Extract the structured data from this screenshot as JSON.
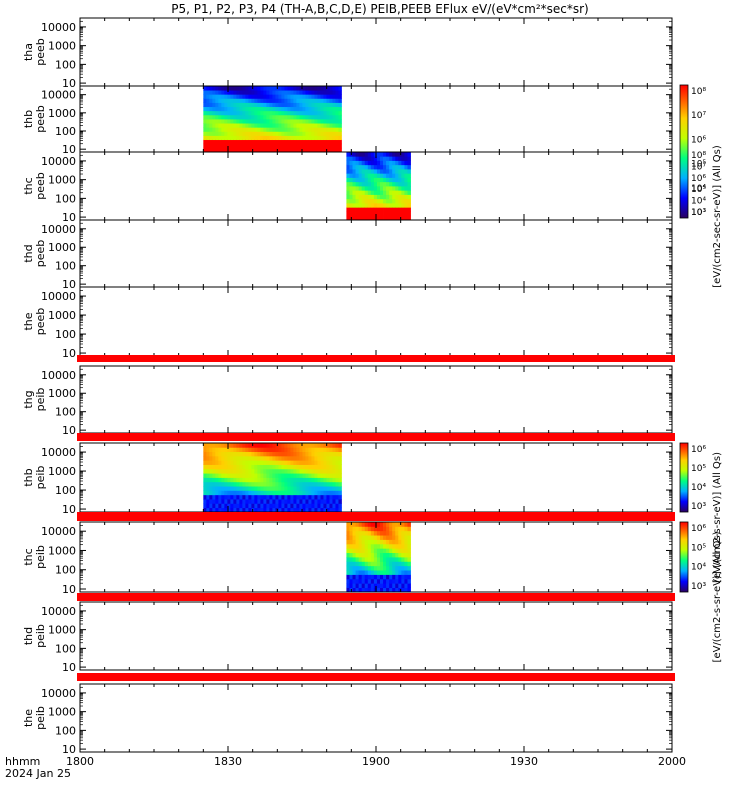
{
  "chart_data": {
    "type": "heatmap",
    "title": "P5, P1, P2, P3, P4 (TH-A,B,C,D,E) PEIB,PEEB EFlux eV/(eV*cm²*sec*sr)",
    "x_axis": {
      "label_line1": "hhmm",
      "label_line2": "2024 Jan 25",
      "range": [
        "18:00",
        "20:00"
      ],
      "ticks": [
        "1800",
        "1830",
        "1900",
        "1930",
        "2000"
      ]
    },
    "y_axis": {
      "scale": "log",
      "range": [
        7,
        30000
      ],
      "ticks": [
        "10",
        "100",
        "1000",
        "10000"
      ],
      "units": "eV"
    },
    "panels": [
      {
        "probe": "thb",
        "product": "peeb",
        "row": 1,
        "line1": "thb",
        "line2": "peeb",
        "data_intervals": [
          [
            "18:25",
            "18:53"
          ]
        ],
        "low_energy_band_below_ev": 35
      },
      {
        "probe": "thc",
        "product": "peeb",
        "row": 2,
        "line1": "thc",
        "line2": "peeb",
        "data_intervals": [
          [
            "18:54",
            "19:07"
          ]
        ],
        "low_energy_band_below_ev": 35
      },
      {
        "probe": "thd",
        "product": "peeb",
        "row": 3,
        "line1": "thd",
        "line2": "peeb",
        "data_intervals": []
      },
      {
        "probe": "the",
        "product": "peeb",
        "row": 4,
        "line1": "the",
        "line2": "peeb",
        "data_intervals": []
      },
      {
        "probe": "thg",
        "product": "peib",
        "row": 5,
        "line1": "thg",
        "line2": "peib",
        "data_intervals": []
      },
      {
        "probe": "thb",
        "product": "peib",
        "row": 6,
        "line1": "thb",
        "line2": "peib",
        "data_intervals": [
          [
            "18:25",
            "18:53"
          ]
        ]
      },
      {
        "probe": "thc",
        "product": "peib",
        "row": 7,
        "line1": "thc",
        "line2": "peib",
        "data_intervals": [
          [
            "18:54",
            "19:07"
          ]
        ]
      },
      {
        "probe": "thd",
        "product": "peib",
        "row": 8,
        "line1": "thd",
        "line2": "peib",
        "data_intervals": []
      },
      {
        "probe": "the",
        "product": "peib",
        "row": 9,
        "line1": "the",
        "line2": "peib",
        "data_intervals": []
      }
    ],
    "top_panel": {
      "probe": "tha",
      "product": "peeb",
      "line1": "tha",
      "line2": "peeb",
      "data_intervals": []
    },
    "colorbars": [
      {
        "unit_label": "[eV/(cm2-sec-sr-eV)] (All Qs)",
        "ticks": [
          "10⁸",
          "10⁷",
          "10⁶",
          "10⁵",
          "10⁴",
          "10³"
        ],
        "overlap_ticks": [
          "10⁸",
          "10⁷",
          "10⁶",
          "10⁵",
          "10⁴",
          "10³"
        ]
      },
      {
        "unit_label": "[eV/(cm2-s-sr-eV)] (All Qs)",
        "ticks": [
          "10⁶",
          "10⁵",
          "10⁴",
          "10³"
        ]
      },
      {
        "unit_label": "[eV/(cm2-s-sr-eV)] (All Qs)",
        "ticks": [
          "10⁶",
          "10⁵",
          "10⁴",
          "10³"
        ]
      }
    ],
    "colors": {
      "missing_data_bar": "#ff0000",
      "frame": "#000000"
    }
  }
}
